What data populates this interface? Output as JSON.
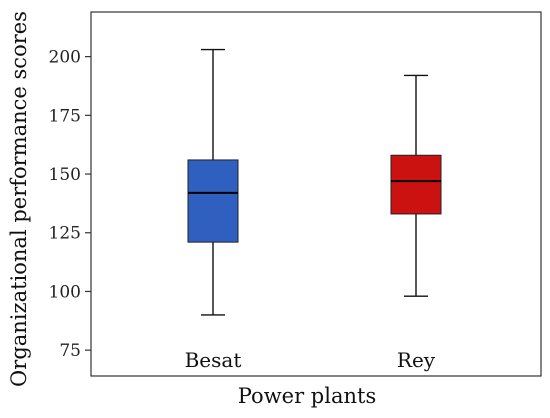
{
  "chart_data": {
    "type": "boxplot",
    "xlabel": "Power plants",
    "ylabel": "Organizational performance scores",
    "ylim": [
      64,
      219
    ],
    "yticks": [
      75,
      100,
      125,
      150,
      175,
      200
    ],
    "grid": false,
    "categories": [
      "Besat",
      "Rey"
    ],
    "series": [
      {
        "category": "Besat",
        "min": 90,
        "q1": 121,
        "median": 142,
        "q3": 156,
        "max": 203,
        "color": "#2f5fbf"
      },
      {
        "category": "Rey",
        "min": 98,
        "q1": 133,
        "median": 147,
        "q3": 158,
        "max": 192,
        "color": "#cc1111"
      }
    ]
  }
}
